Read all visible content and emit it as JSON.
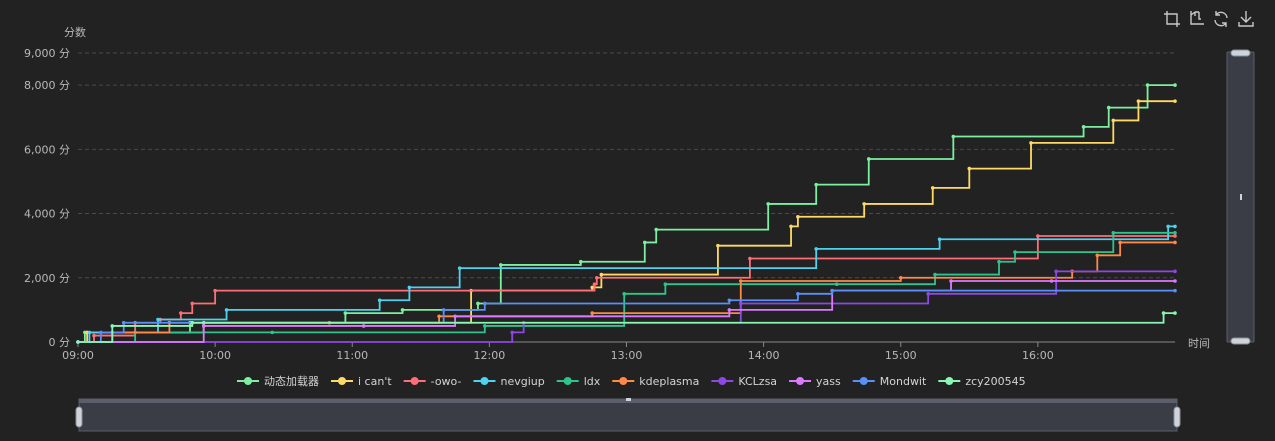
{
  "toolbox": {
    "icons": [
      "data-zoom-icon",
      "data-zoom-reset-icon",
      "restore-icon",
      "save-image-icon"
    ]
  },
  "chart_data": {
    "type": "line",
    "step": true,
    "ylabel": "分数",
    "xlabel": "时间",
    "ylim": [
      0,
      9000
    ],
    "xlim": [
      "09:00",
      "17:00"
    ],
    "y_ticks": [
      "0 分",
      "2,000 分",
      "4,000 分",
      "6,000 分",
      "8,000 分",
      "9,000 分"
    ],
    "x_ticks": [
      "09:00",
      "10:00",
      "11:00",
      "12:00",
      "13:00",
      "14:00",
      "15:00",
      "16:00"
    ],
    "grid": true,
    "legend_position": "bottom",
    "series": [
      {
        "name": "动态加载器",
        "color": "#7cf0a0",
        "points": [
          [
            "09:00",
            0
          ],
          [
            "09:03",
            300
          ],
          [
            "09:49",
            600
          ],
          [
            "10:57",
            900
          ],
          [
            "11:22",
            1000
          ],
          [
            "11:55",
            1200
          ],
          [
            "12:05",
            2400
          ],
          [
            "12:40",
            2500
          ],
          [
            "13:08",
            3100
          ],
          [
            "13:13",
            3500
          ],
          [
            "14:02",
            4300
          ],
          [
            "14:23",
            4900
          ],
          [
            "14:46",
            5700
          ],
          [
            "15:23",
            6400
          ],
          [
            "16:20",
            6700
          ],
          [
            "16:31",
            7300
          ],
          [
            "16:48",
            8000
          ],
          [
            "17:00",
            8000
          ]
        ]
      },
      {
        "name": "i can't",
        "color": "#ffd966",
        "points": [
          [
            "09:00",
            0
          ],
          [
            "09:04",
            300
          ],
          [
            "09:55",
            600
          ],
          [
            "11:52",
            1600
          ],
          [
            "12:45",
            1700
          ],
          [
            "12:49",
            2100
          ],
          [
            "13:40",
            3000
          ],
          [
            "14:12",
            3600
          ],
          [
            "14:15",
            3900
          ],
          [
            "14:44",
            4300
          ],
          [
            "15:14",
            4800
          ],
          [
            "15:30",
            5400
          ],
          [
            "15:57",
            6200
          ],
          [
            "16:33",
            6900
          ],
          [
            "16:44",
            7500
          ],
          [
            "17:00",
            7500
          ]
        ]
      },
      {
        "name": "-owo-",
        "color": "#ff6e76",
        "points": [
          [
            "09:00",
            0
          ],
          [
            "09:07",
            200
          ],
          [
            "09:25",
            600
          ],
          [
            "09:36",
            700
          ],
          [
            "09:45",
            900
          ],
          [
            "09:50",
            1200
          ],
          [
            "10:00",
            1600
          ],
          [
            "12:46",
            1800
          ],
          [
            "12:47",
            2000
          ],
          [
            "13:54",
            2600
          ],
          [
            "16:00",
            3300
          ],
          [
            "17:00",
            3300
          ]
        ]
      },
      {
        "name": "nevgiup",
        "color": "#4dd3f0",
        "points": [
          [
            "09:00",
            0
          ],
          [
            "09:05",
            300
          ],
          [
            "09:35",
            700
          ],
          [
            "10:05",
            1000
          ],
          [
            "11:12",
            1300
          ],
          [
            "11:25",
            1700
          ],
          [
            "11:47",
            2300
          ],
          [
            "14:23",
            2900
          ],
          [
            "15:17",
            3200
          ],
          [
            "16:57",
            3600
          ],
          [
            "17:00",
            3600
          ]
        ]
      },
      {
        "name": "ldx",
        "color": "#2dc48d",
        "points": [
          [
            "09:00",
            0
          ],
          [
            "09:25",
            300
          ],
          [
            "10:25",
            300
          ],
          [
            "11:58",
            500
          ],
          [
            "12:59",
            1500
          ],
          [
            "13:17",
            1800
          ],
          [
            "14:32",
            1800
          ],
          [
            "15:15",
            2100
          ],
          [
            "15:43",
            2500
          ],
          [
            "15:50",
            2800
          ],
          [
            "16:33",
            3400
          ],
          [
            "17:00",
            3400
          ]
        ]
      },
      {
        "name": "kdeplasma",
        "color": "#ff8a45",
        "points": [
          [
            "09:00",
            0
          ],
          [
            "09:15",
            300
          ],
          [
            "09:40",
            600
          ],
          [
            "10:50",
            600
          ],
          [
            "11:38",
            800
          ],
          [
            "12:45",
            900
          ],
          [
            "13:50",
            1900
          ],
          [
            "15:00",
            2000
          ],
          [
            "16:15",
            2200
          ],
          [
            "16:26",
            2700
          ],
          [
            "16:36",
            3100
          ],
          [
            "17:00",
            3100
          ]
        ]
      },
      {
        "name": "KCLzsa",
        "color": "#8d48e3",
        "points": [
          [
            "09:00",
            0
          ],
          [
            "12:10",
            300
          ],
          [
            "12:15",
            600
          ],
          [
            "13:50",
            1200
          ],
          [
            "15:12",
            1500
          ],
          [
            "16:08",
            2200
          ],
          [
            "17:00",
            2200
          ]
        ]
      },
      {
        "name": "yass",
        "color": "#dd79ff",
        "points": [
          [
            "09:00",
            0
          ],
          [
            "09:55",
            500
          ],
          [
            "11:05",
            500
          ],
          [
            "11:45",
            800
          ],
          [
            "13:45",
            1000
          ],
          [
            "14:30",
            1600
          ],
          [
            "15:22",
            1900
          ],
          [
            "16:06",
            1900
          ],
          [
            "17:00",
            1900
          ]
        ]
      },
      {
        "name": "Mondwit",
        "color": "#5a8ff7",
        "points": [
          [
            "09:00",
            0
          ],
          [
            "09:10",
            300
          ],
          [
            "09:20",
            600
          ],
          [
            "11:40",
            1000
          ],
          [
            "11:58",
            1200
          ],
          [
            "13:45",
            1300
          ],
          [
            "14:15",
            1500
          ],
          [
            "14:30",
            1600
          ],
          [
            "17:00",
            1600
          ]
        ]
      },
      {
        "name": "zcy200545",
        "color": "#8bf5b2",
        "points": [
          [
            "09:00",
            0
          ],
          [
            "09:15",
            500
          ],
          [
            "09:50",
            600
          ],
          [
            "16:55",
            900
          ],
          [
            "17:00",
            900
          ]
        ]
      }
    ]
  }
}
